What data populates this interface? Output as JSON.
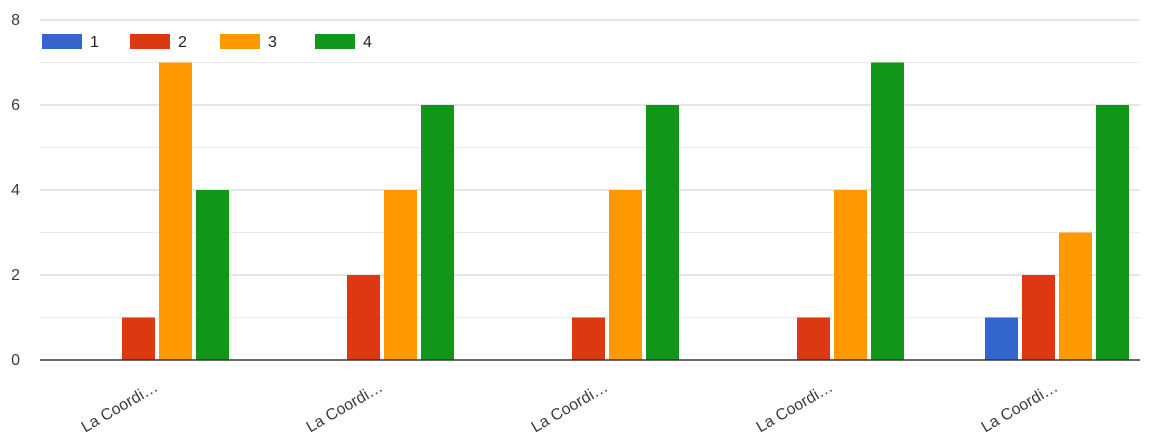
{
  "chart_data": {
    "type": "bar",
    "categories": [
      "La Coordi…",
      "La Coordi…",
      "La Coordi…",
      "La Coordi…",
      "La Coordi…"
    ],
    "series": [
      {
        "name": "1",
        "color": "#3366cc",
        "values": [
          0,
          0,
          0,
          0,
          1
        ]
      },
      {
        "name": "2",
        "color": "#dc3912",
        "values": [
          1,
          2,
          1,
          1,
          2
        ]
      },
      {
        "name": "3",
        "color": "#ff9900",
        "values": [
          7,
          4,
          4,
          4,
          3
        ]
      },
      {
        "name": "4",
        "color": "#109618",
        "values": [
          4,
          6,
          6,
          7,
          6
        ]
      }
    ],
    "y_ticks": [
      "0",
      "2",
      "4",
      "6",
      "8"
    ],
    "ylim": [
      0,
      8
    ],
    "grid": true,
    "legend_position": "top-left"
  }
}
